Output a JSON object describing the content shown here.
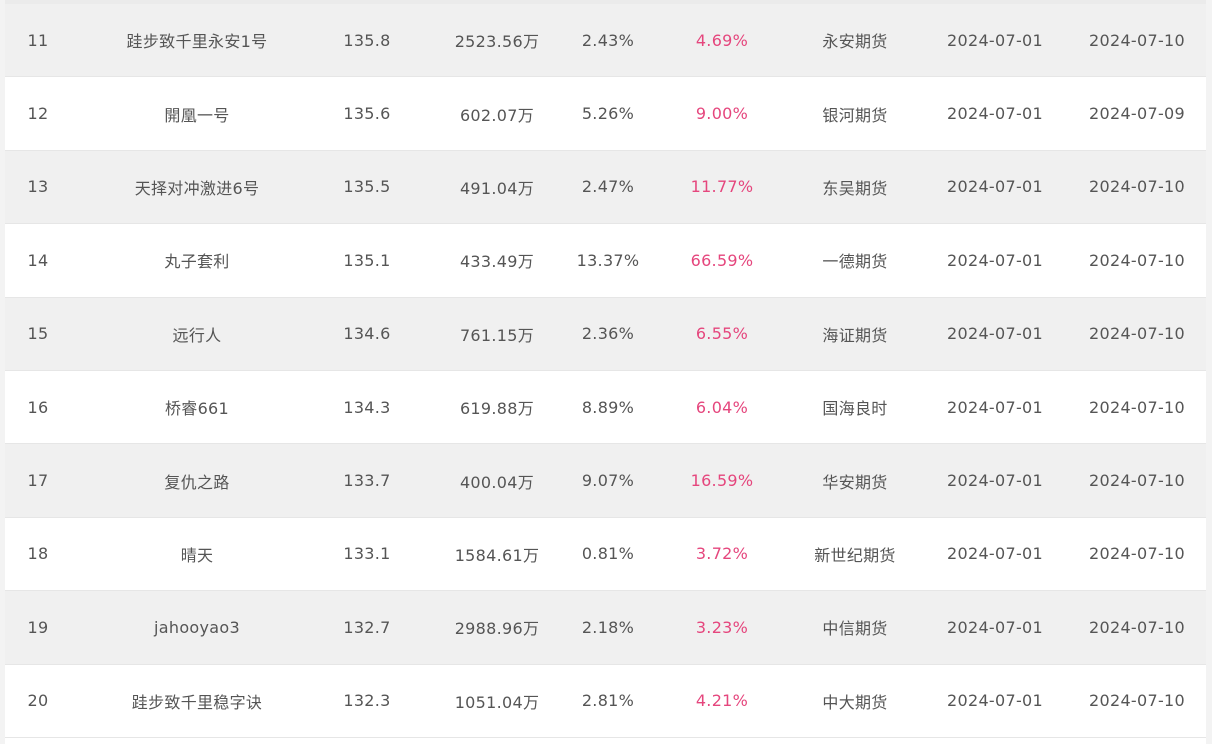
{
  "rows": [
    {
      "rank": "11",
      "name": "跬步致千里永安1号",
      "score": "135.8",
      "amount": "2523.56万",
      "pct1": "2.43%",
      "pct2": "4.69%",
      "broker": "永安期货",
      "start": "2024-07-01",
      "end": "2024-07-10"
    },
    {
      "rank": "12",
      "name": "開凰一号",
      "score": "135.6",
      "amount": "602.07万",
      "pct1": "5.26%",
      "pct2": "9.00%",
      "broker": "银河期货",
      "start": "2024-07-01",
      "end": "2024-07-09"
    },
    {
      "rank": "13",
      "name": "天择对冲激进6号",
      "score": "135.5",
      "amount": "491.04万",
      "pct1": "2.47%",
      "pct2": "11.77%",
      "broker": "东吴期货",
      "start": "2024-07-01",
      "end": "2024-07-10"
    },
    {
      "rank": "14",
      "name": "丸子套利",
      "score": "135.1",
      "amount": "433.49万",
      "pct1": "13.37%",
      "pct2": "66.59%",
      "broker": "一德期货",
      "start": "2024-07-01",
      "end": "2024-07-10"
    },
    {
      "rank": "15",
      "name": "远行人",
      "score": "134.6",
      "amount": "761.15万",
      "pct1": "2.36%",
      "pct2": "6.55%",
      "broker": "海证期货",
      "start": "2024-07-01",
      "end": "2024-07-10"
    },
    {
      "rank": "16",
      "name": "桥睿661",
      "score": "134.3",
      "amount": "619.88万",
      "pct1": "8.89%",
      "pct2": "6.04%",
      "broker": "国海良时",
      "start": "2024-07-01",
      "end": "2024-07-10"
    },
    {
      "rank": "17",
      "name": "复仇之路",
      "score": "133.7",
      "amount": "400.04万",
      "pct1": "9.07%",
      "pct2": "16.59%",
      "broker": "华安期货",
      "start": "2024-07-01",
      "end": "2024-07-10"
    },
    {
      "rank": "18",
      "name": "晴天",
      "score": "133.1",
      "amount": "1584.61万",
      "pct1": "0.81%",
      "pct2": "3.72%",
      "broker": "新世纪期货",
      "start": "2024-07-01",
      "end": "2024-07-10"
    },
    {
      "rank": "19",
      "name": "jahooyao3",
      "score": "132.7",
      "amount": "2988.96万",
      "pct1": "2.18%",
      "pct2": "3.23%",
      "broker": "中信期货",
      "start": "2024-07-01",
      "end": "2024-07-10"
    },
    {
      "rank": "20",
      "name": "跬步致千里稳字诀",
      "score": "132.3",
      "amount": "1051.04万",
      "pct1": "2.81%",
      "pct2": "4.21%",
      "broker": "中大期货",
      "start": "2024-07-01",
      "end": "2024-07-10"
    }
  ],
  "colors": {
    "highlight_pct": "#e5467d",
    "text": "#555555",
    "row_alt": "#f0f0f0"
  }
}
